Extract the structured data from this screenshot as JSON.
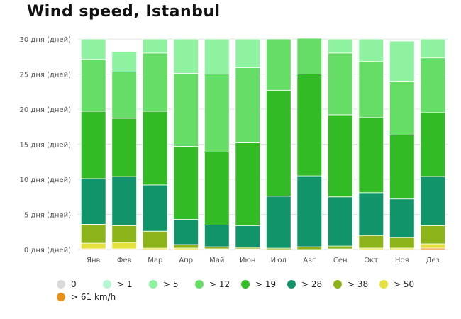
{
  "title": "Wind speed, Istanbul",
  "chart_data": {
    "type": "bar",
    "stacked": true,
    "title": "Wind speed, Istanbul",
    "xlabel": "",
    "ylabel": "",
    "ylim": [
      0,
      30
    ],
    "yticks": [
      {
        "value": 0,
        "label": "0 дня (дней)"
      },
      {
        "value": 5,
        "label": "5 дня (дней)"
      },
      {
        "value": 10,
        "label": "10 дня (дней)"
      },
      {
        "value": 15,
        "label": "15 дня (дней)"
      },
      {
        "value": 20,
        "label": "20 дня (дней)"
      },
      {
        "value": 25,
        "label": "25 дня (дней)"
      },
      {
        "value": 30,
        "label": "30 дня (дней)"
      }
    ],
    "grid": true,
    "legend_position": "bottom",
    "categories": [
      "Янв",
      "Фев",
      "Мар",
      "Апр",
      "Май",
      "Июн",
      "Июл",
      "Авг",
      "Сен",
      "Окт",
      "Ноя",
      "Дез"
    ],
    "series": [
      {
        "name": ">61 km/h",
        "color": "#e8901a",
        "values": [
          0.1,
          0.1,
          0.0,
          0.0,
          0.0,
          0.0,
          0.0,
          0.0,
          0.0,
          0.0,
          0.0,
          0.2
        ]
      },
      {
        "name": ">50",
        "color": "#e4e23a",
        "values": [
          0.8,
          0.9,
          0.2,
          0.2,
          0.1,
          0.1,
          0.0,
          0.0,
          0.1,
          0.2,
          0.2,
          0.6
        ]
      },
      {
        "name": ">38",
        "color": "#8cb41a",
        "values": [
          2.7,
          2.4,
          2.4,
          0.5,
          0.3,
          0.2,
          0.2,
          0.4,
          0.4,
          1.8,
          1.5,
          2.6
        ]
      },
      {
        "name": ">28",
        "color": "#12946a",
        "values": [
          6.5,
          7.0,
          6.6,
          3.6,
          3.1,
          3.1,
          7.4,
          10.1,
          7.0,
          6.1,
          5.5,
          7.0
        ]
      },
      {
        "name": ">19",
        "color": "#33bb25",
        "values": [
          9.6,
          8.3,
          10.5,
          10.4,
          10.4,
          11.8,
          15.1,
          14.5,
          11.7,
          10.7,
          9.1,
          9.1
        ]
      },
      {
        "name": ">12",
        "color": "#66dd66",
        "values": [
          7.4,
          6.6,
          8.3,
          10.4,
          11.1,
          10.7,
          7.3,
          5.1,
          8.8,
          8.0,
          7.7,
          7.8
        ]
      },
      {
        "name": ">5",
        "color": "#8ef2a0",
        "values": [
          2.9,
          2.9,
          2.0,
          4.9,
          5.0,
          4.1,
          0.0,
          0.0,
          2.0,
          3.2,
          5.7,
          2.7
        ]
      },
      {
        "name": ">1",
        "color": "#b4f7d2",
        "values": [
          0.0,
          0.0,
          0.0,
          0.0,
          0.0,
          0.0,
          0.0,
          0.0,
          0.0,
          0.0,
          0.0,
          0.0
        ]
      },
      {
        "name": "0",
        "color": "#d9d9d9",
        "values": [
          0.0,
          0.0,
          0.0,
          0.0,
          0.0,
          0.0,
          0.0,
          0.0,
          0.0,
          0.0,
          0.0,
          0.0
        ]
      }
    ],
    "legend": [
      {
        "label": "0",
        "color": "#d9d9d9"
      },
      {
        "label": "> 1",
        "color": "#b4f7d2"
      },
      {
        "label": "> 5",
        "color": "#8ef2a0"
      },
      {
        "label": "> 12",
        "color": "#66dd66"
      },
      {
        "label": "> 19",
        "color": "#33bb25"
      },
      {
        "label": "> 28",
        "color": "#12946a"
      },
      {
        "label": "> 38",
        "color": "#8cb41a"
      },
      {
        "label": "> 50",
        "color": "#e4e23a"
      },
      {
        "label": "> 61 km/h",
        "color": "#e8901a"
      }
    ]
  }
}
